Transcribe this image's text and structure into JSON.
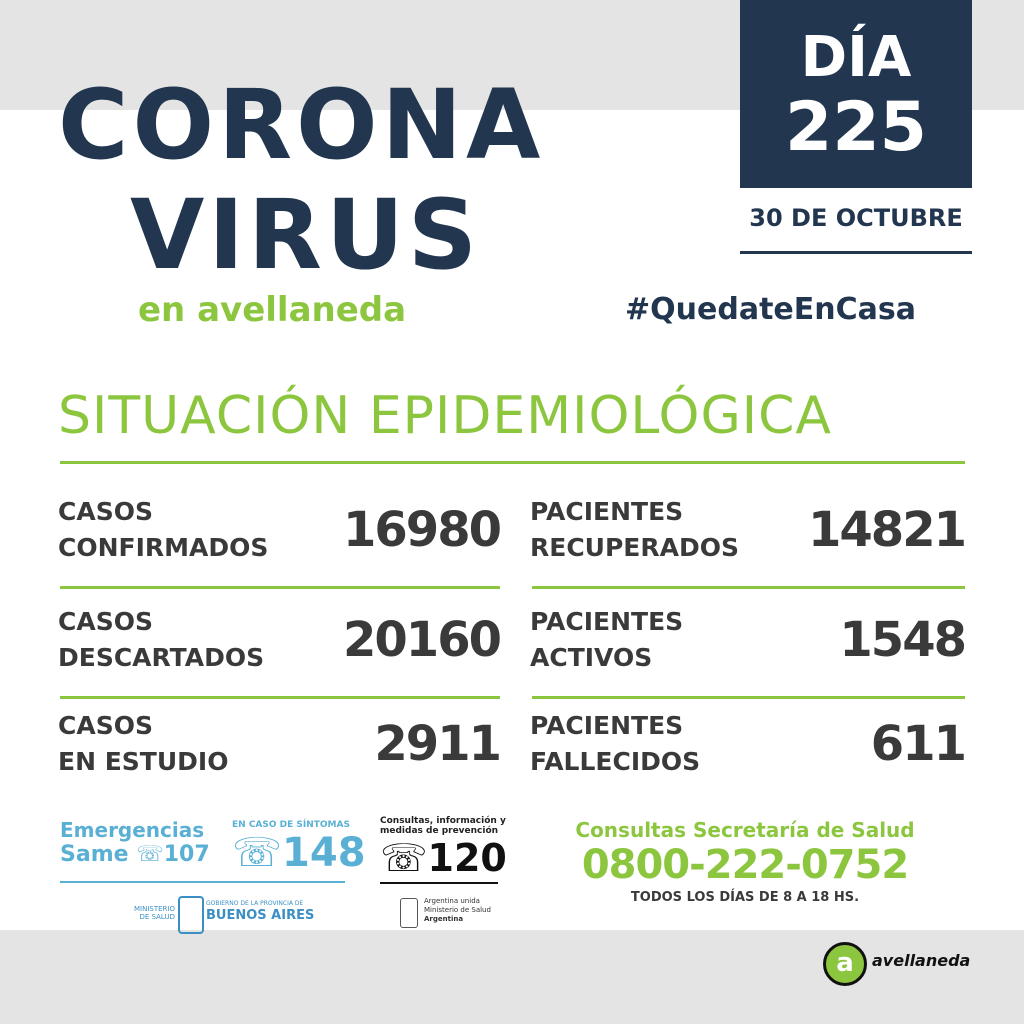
{
  "header": {
    "title_lines": [
      "CORONA",
      "VIRUS"
    ],
    "subtitle": "en avellaneda",
    "day_label": "DÍA",
    "day_number": 225,
    "date": "30 DE OCTUBRE",
    "hashtag": "#QuedateEnCasa"
  },
  "section_title": "SITUACIÓN EPIDEMIOLÓGICA",
  "columns": [
    [
      {
        "label_lines": [
          "CASOS",
          "CONFIRMADOS"
        ],
        "value": 16980
      },
      {
        "label_lines": [
          "CASOS",
          "DESCARTADOS"
        ],
        "value": 20160
      },
      {
        "label_lines": [
          "CASOS",
          "EN ESTUDIO"
        ],
        "value": 2911
      }
    ],
    [
      {
        "label_lines": [
          "PACIENTES",
          "RECUPERADOS"
        ],
        "value": 14821
      },
      {
        "label_lines": [
          "PACIENTES",
          "ACTIVOS"
        ],
        "value": 1548
      },
      {
        "label_lines": [
          "PACIENTES",
          "FALLECIDOS"
        ],
        "value": 611
      }
    ]
  ],
  "footer": {
    "emergencias": "Emergencias",
    "same": "Same",
    "same_number": 107,
    "sintomas_label": "EN CASO DE SÍNTOMAS",
    "sintomas_number": 148,
    "consultas_lines": [
      "Consultas, información y",
      "medidas de prevención"
    ],
    "consultas_number": 120,
    "province_ministry": "MINISTERIO DE SALUD",
    "province_gov": "GOBIERNO DE LA PROVINCIA DE",
    "province_name": "BUENOS AIRES",
    "nation_lines": [
      "Argentina unida",
      "Ministerio de Salud",
      "Argentina"
    ],
    "secretaria": "Consultas Secretaría de Salud",
    "secretaria_phone": "0800-222-0752",
    "secretaria_hours": "TODOS LOS DÍAS DE 8 A 18 HS.",
    "brand": "avellaneda"
  }
}
